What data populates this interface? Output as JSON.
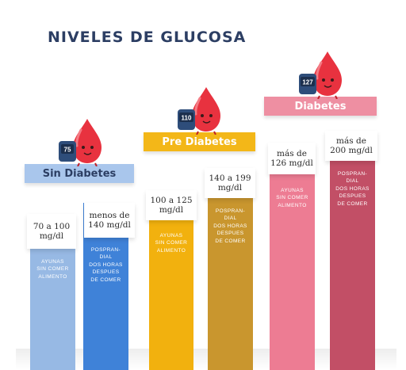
{
  "title": "NIVELES DE GLUCOSA",
  "colors": {
    "title": "#2c3e63",
    "sin_banner": "#a9c6ec",
    "sin_ayunas": "#97b9e4",
    "sin_pospran": "#3f82d8",
    "pre_banner": "#f3b718",
    "pre_ayunas": "#f2b10e",
    "pre_pospran": "#c9962e",
    "dia_banner": "#ee8fa2",
    "dia_ayunas": "#ed7c93",
    "dia_pospran": "#c24f66",
    "drop": "#e8323f"
  },
  "groups": [
    {
      "name": "Sin Diabetes",
      "meter": "75",
      "bars": [
        {
          "range": "70 a 100\nmg/dl",
          "desc": "AYUNAS\nSIN COMER\nALIMENTO"
        },
        {
          "range": "menos de\n140 mg/dl",
          "desc": "POSPRAN-\nDIAL\nDOS HORAS\nDESPUES\nDE COMER"
        }
      ]
    },
    {
      "name": "Pre Diabetes",
      "meter": "110",
      "bars": [
        {
          "range": "100 a 125\nmg/dl",
          "desc": "AYUNAS\nSIN COMER\nALIMENTO"
        },
        {
          "range": "140 a 199\nmg/dl",
          "desc": "POSPRAN-\nDIAL\nDOS HORAS\nDESPUES\nDE COMER"
        }
      ]
    },
    {
      "name": "Diabetes",
      "meter": "127",
      "bars": [
        {
          "range": "más de\n126 mg/dl",
          "desc": "AYUNAS\nSIN COMER\nALIMENTO"
        },
        {
          "range": "más de\n200 mg/dl",
          "desc": "POSPRAN-\nDIAL\nDOS HORAS\nDESPUES\nDE COMER"
        }
      ]
    }
  ]
}
